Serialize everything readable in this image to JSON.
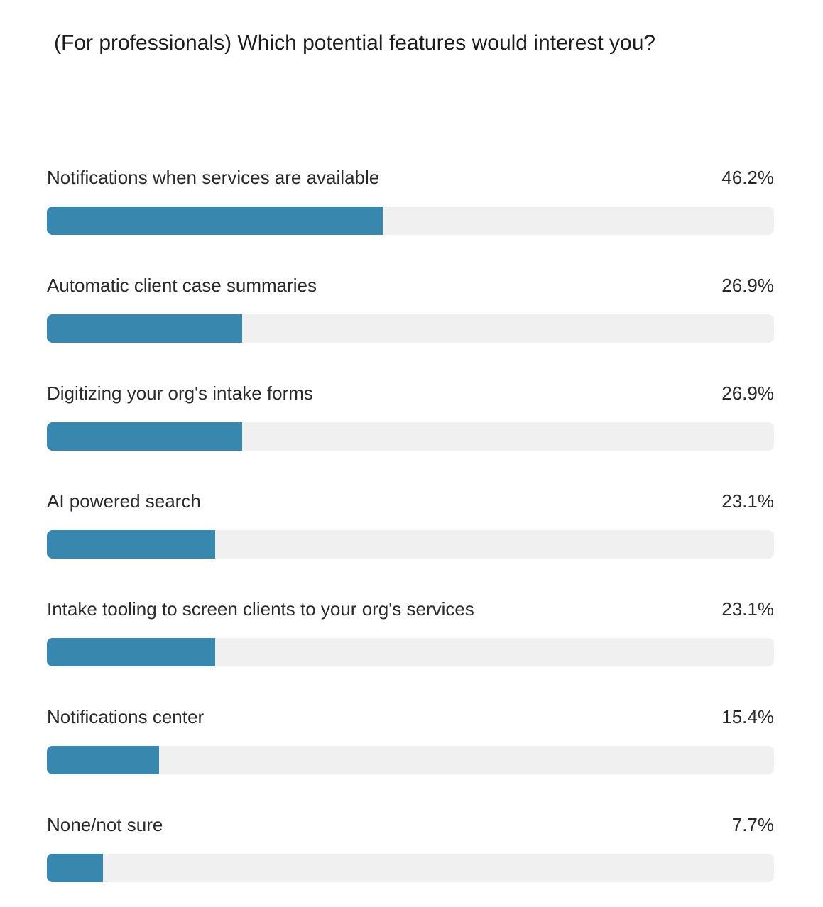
{
  "chart_data": {
    "type": "bar",
    "orientation": "horizontal",
    "title": "(For professionals) Which potential features would interest you?",
    "xlim": [
      0,
      100
    ],
    "grid": false,
    "bar_color": "#3887ae",
    "track_color": "#f0f0f0",
    "categories": [
      "Notifications when services are available",
      "Automatic client case summaries",
      "Digitizing your org's intake forms",
      "AI powered search",
      "Intake tooling to screen clients to your org's services",
      "Notifications center",
      "None/not sure"
    ],
    "values": [
      46.2,
      26.9,
      26.9,
      23.1,
      23.1,
      15.4,
      7.7
    ],
    "value_labels": [
      "46.2%",
      "26.9%",
      "26.9%",
      "23.1%",
      "23.1%",
      "15.4%",
      "7.7%"
    ]
  }
}
